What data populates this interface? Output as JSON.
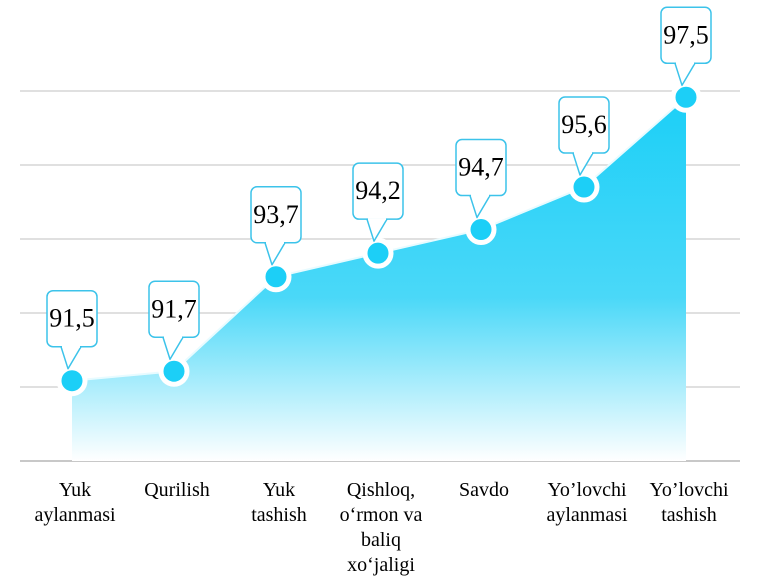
{
  "chart_data": {
    "type": "area",
    "categories": [
      [
        "Yuk",
        "aylanmasi"
      ],
      [
        "Qurilish"
      ],
      [
        "Yuk",
        "tashish"
      ],
      [
        "Qishloq,",
        "o‘rmon va",
        "baliq",
        "xo‘jaligi"
      ],
      [
        "Savdo"
      ],
      [
        "Yo’lovchi",
        "aylanmasi"
      ],
      [
        "Yo’lovchi",
        "tashish"
      ]
    ],
    "values": [
      91.5,
      91.7,
      93.7,
      94.2,
      94.7,
      95.6,
      97.5
    ],
    "value_labels": [
      "91,5",
      "91,7",
      "93,7",
      "94,2",
      "94,7",
      "95,6",
      "97,5"
    ],
    "title": "",
    "xlabel": "",
    "ylabel": "",
    "ylim": [
      89.8,
      99.2
    ],
    "grid": true,
    "legend": "none",
    "colors": {
      "area_top": "#1ccff7",
      "area_bottom": "#ffffff",
      "line": "#e8fbff",
      "marker_fill": "#1ccff7",
      "marker_ring": "#ffffff",
      "callout_stroke": "#3cc3ea",
      "gridline": "#d6d6d6"
    }
  }
}
